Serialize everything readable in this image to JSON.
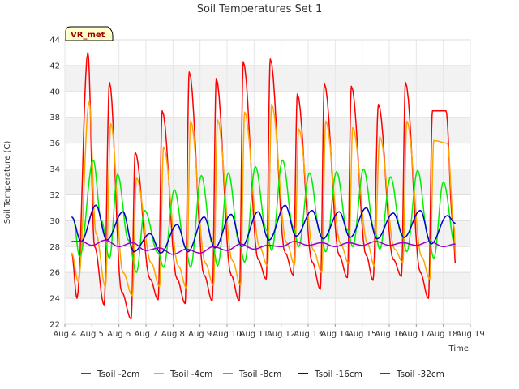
{
  "chart_data": {
    "type": "line",
    "title": "Soil Temperatures Set 1",
    "xlabel": "Time",
    "ylabel": "Soil Temperature (C)",
    "site_label": "VR_met",
    "xlim": [
      4,
      19
    ],
    "ylim": [
      22,
      44
    ],
    "x_tick_labels": [
      "Aug 4",
      "Aug 5",
      "Aug 6",
      "Aug 7",
      "Aug 8",
      "Aug 9",
      "Aug 10",
      "Aug 11",
      "Aug 12",
      "Aug 13",
      "Aug 14",
      "Aug 15",
      "Aug 16",
      "Aug 17",
      "Aug 18",
      "Aug 19"
    ],
    "y_ticks": [
      22,
      24,
      26,
      28,
      30,
      32,
      34,
      36,
      38,
      40,
      42,
      44
    ],
    "grid": true,
    "legend_position": "bottom",
    "series": [
      {
        "name": "Tsoil -2cm",
        "color": "#ff0000",
        "x": [
          4.25,
          4.45,
          4.85,
          5.1,
          5.45,
          5.65,
          6.1,
          6.45,
          6.6,
          7.15,
          7.45,
          7.6,
          8.15,
          8.45,
          8.6,
          9.15,
          9.45,
          9.6,
          10.15,
          10.45,
          10.6,
          11.15,
          11.45,
          11.6,
          12.15,
          12.45,
          12.6,
          13.15,
          13.45,
          13.6,
          14.15,
          14.45,
          14.6,
          15.15,
          15.4,
          15.6,
          16.15,
          16.45,
          16.6,
          17.15,
          17.45,
          17.6,
          18.1,
          18.35,
          18.45
        ],
        "y": [
          27.5,
          24.0,
          43.0,
          28.0,
          23.5,
          40.7,
          24.5,
          22.4,
          35.3,
          25.5,
          23.9,
          38.5,
          25.5,
          23.6,
          41.5,
          25.8,
          23.8,
          41.0,
          25.8,
          23.8,
          42.3,
          27.0,
          25.5,
          42.5,
          27.5,
          25.8,
          39.8,
          26.8,
          24.7,
          40.6,
          27.3,
          25.6,
          40.4,
          27.3,
          25.4,
          39.0,
          27.0,
          25.7,
          40.7,
          26.0,
          24.0,
          38.5,
          38.5,
          30.0,
          26.7
        ]
      },
      {
        "name": "Tsoil -4cm",
        "color": "#ffa500",
        "x": [
          4.25,
          4.5,
          4.9,
          5.15,
          5.5,
          5.7,
          6.15,
          6.5,
          6.65,
          7.2,
          7.5,
          7.65,
          8.2,
          8.5,
          8.65,
          9.2,
          9.5,
          9.65,
          10.2,
          10.5,
          10.65,
          11.2,
          11.5,
          11.65,
          12.2,
          12.5,
          12.65,
          13.2,
          13.5,
          13.65,
          14.2,
          14.5,
          14.65,
          15.2,
          15.45,
          15.65,
          16.2,
          16.5,
          16.65,
          17.2,
          17.5,
          17.65,
          18.15,
          18.4,
          18.45
        ],
        "y": [
          27.5,
          25.3,
          39.2,
          29.0,
          24.9,
          37.5,
          26.0,
          24.2,
          33.3,
          26.7,
          24.9,
          35.7,
          26.5,
          24.8,
          37.7,
          26.7,
          25.0,
          37.8,
          26.9,
          25.0,
          38.4,
          28.0,
          26.5,
          39.0,
          28.3,
          26.6,
          37.1,
          27.7,
          26.0,
          37.7,
          28.2,
          26.7,
          37.2,
          28.2,
          26.5,
          36.5,
          27.8,
          26.8,
          37.7,
          27.2,
          25.5,
          36.2,
          36.0,
          29.5,
          27.5
        ]
      },
      {
        "name": "Tsoil -8cm",
        "color": "#00ee00",
        "x": [
          4.3,
          4.55,
          5.05,
          5.35,
          5.65,
          5.95,
          6.35,
          6.65,
          6.95,
          7.45,
          7.65,
          8.05,
          8.45,
          8.65,
          9.05,
          9.45,
          9.65,
          10.05,
          10.45,
          10.65,
          11.05,
          11.45,
          11.65,
          12.05,
          12.45,
          12.65,
          13.05,
          13.45,
          13.65,
          14.05,
          14.45,
          14.65,
          15.05,
          15.45,
          15.65,
          16.05,
          16.45,
          16.65,
          17.05,
          17.45,
          17.65,
          18.0,
          18.45
        ],
        "y": [
          30.2,
          27.2,
          34.7,
          30.0,
          27.1,
          33.6,
          28.5,
          26.0,
          30.8,
          27.5,
          26.4,
          32.4,
          28.0,
          26.4,
          33.5,
          28.3,
          26.5,
          33.7,
          28.3,
          26.8,
          34.2,
          29.3,
          27.7,
          34.7,
          29.5,
          28.0,
          33.7,
          29.0,
          27.6,
          33.8,
          29.3,
          28.0,
          34.0,
          29.3,
          27.8,
          33.4,
          29.0,
          27.6,
          33.9,
          28.7,
          27.1,
          33.0,
          28.0
        ]
      },
      {
        "name": "Tsoil -16cm",
        "color": "#0000cc",
        "x": [
          4.25,
          4.6,
          5.15,
          5.55,
          6.15,
          6.55,
          7.15,
          7.55,
          8.15,
          8.55,
          9.15,
          9.55,
          10.15,
          10.55,
          11.15,
          11.55,
          12.15,
          12.55,
          13.15,
          13.55,
          14.15,
          14.55,
          15.15,
          15.55,
          16.15,
          16.55,
          17.15,
          17.55,
          18.15,
          18.45
        ],
        "y": [
          30.3,
          28.4,
          31.2,
          28.5,
          30.7,
          27.6,
          29.0,
          27.5,
          29.7,
          27.6,
          30.3,
          27.9,
          30.5,
          28.0,
          30.7,
          28.5,
          31.2,
          28.8,
          30.8,
          28.6,
          30.7,
          28.7,
          31.0,
          28.6,
          30.6,
          28.7,
          30.8,
          28.2,
          30.4,
          29.8
        ]
      },
      {
        "name": "Tsoil -32cm",
        "color": "#9900cc",
        "x": [
          4.25,
          4.6,
          5.0,
          5.5,
          6.0,
          6.5,
          7.0,
          7.5,
          8.0,
          8.5,
          9.0,
          9.5,
          10.0,
          10.5,
          11.0,
          11.5,
          12.0,
          12.5,
          13.0,
          13.5,
          14.0,
          14.5,
          15.0,
          15.5,
          16.0,
          16.5,
          17.0,
          17.5,
          18.0,
          18.45
        ],
        "y": [
          28.4,
          28.4,
          28.1,
          28.5,
          28.0,
          28.3,
          27.7,
          27.9,
          27.4,
          27.8,
          27.5,
          28.0,
          27.7,
          28.2,
          27.8,
          28.1,
          28.0,
          28.4,
          28.1,
          28.3,
          28.0,
          28.3,
          28.1,
          28.4,
          28.1,
          28.3,
          28.1,
          28.4,
          28.0,
          28.2
        ]
      }
    ]
  }
}
